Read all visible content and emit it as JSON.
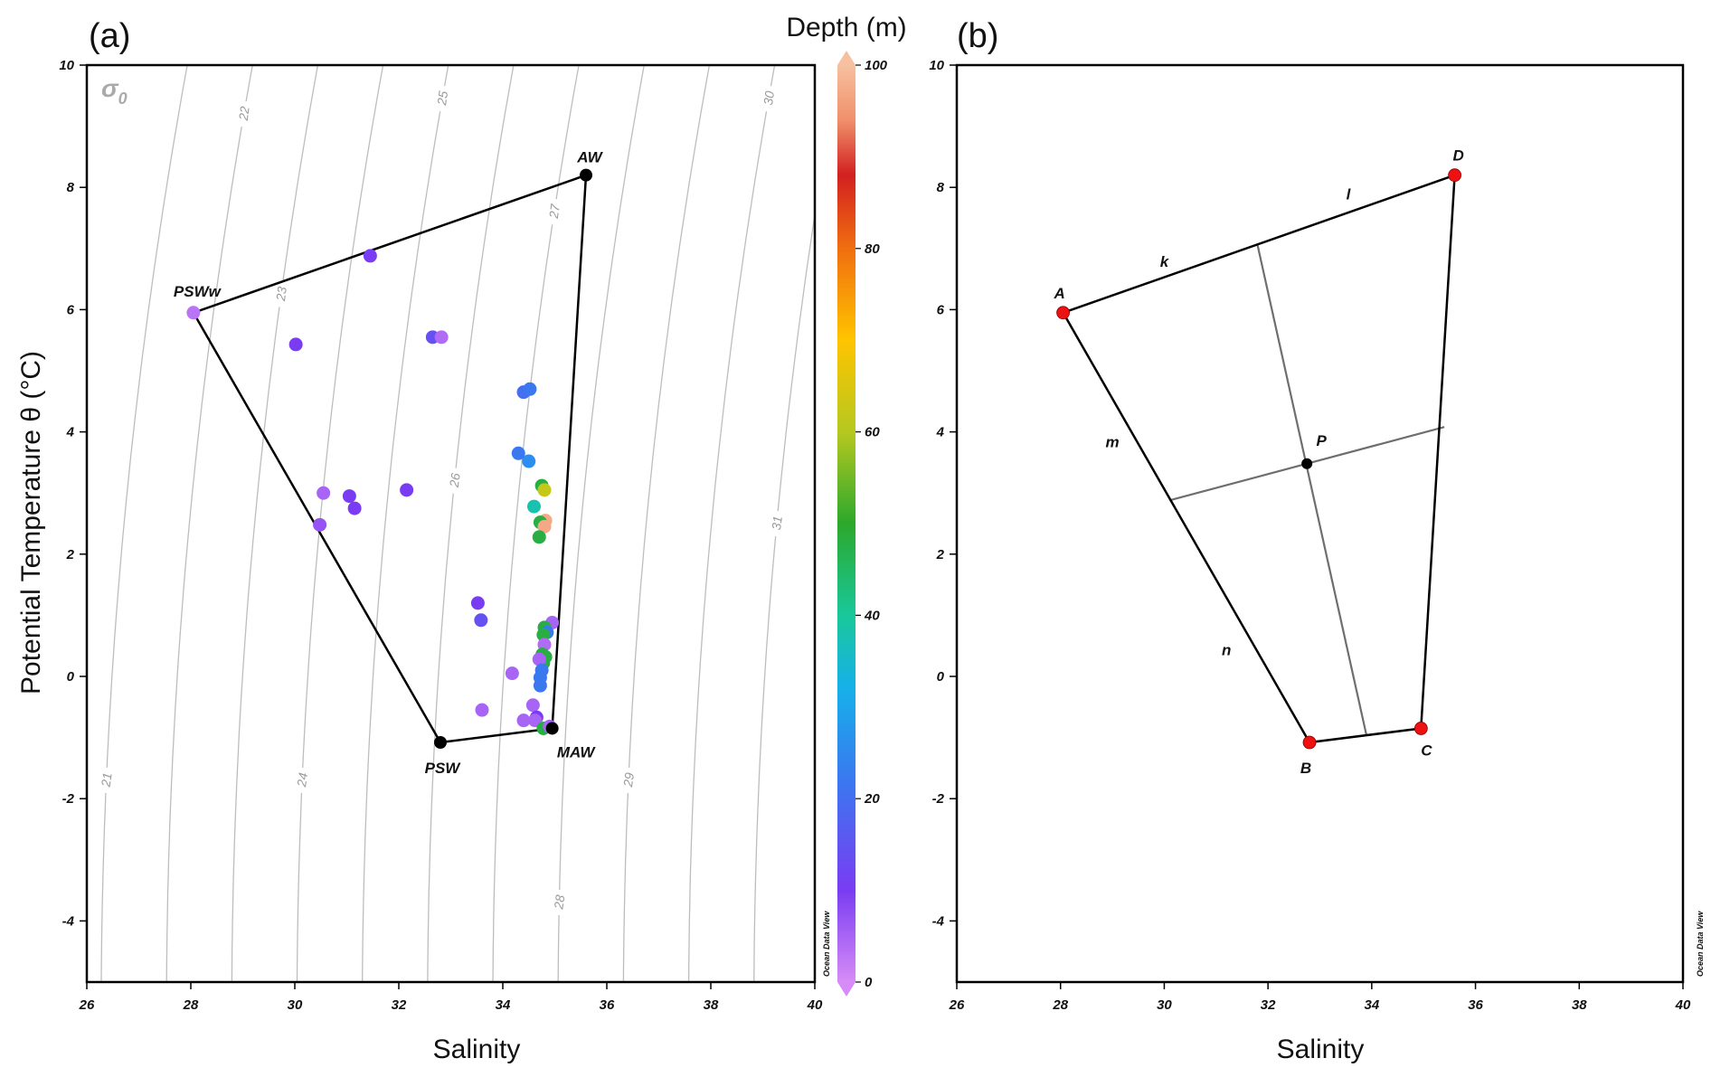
{
  "figure": {
    "panel_a_label": "(a)",
    "panel_b_label": "(b)",
    "colorbar_title": "Depth (m)",
    "watermark": "Ocean Data View",
    "sigma_label": "σ0"
  },
  "chart_data": [
    {
      "id": "a",
      "type": "scatter",
      "xlabel": "Salinity",
      "ylabel": "Potential Temperature θ (°C)",
      "xlim": [
        26,
        40
      ],
      "ylim": [
        -5,
        10
      ],
      "xticks": [
        26,
        28,
        30,
        32,
        34,
        36,
        38,
        40
      ],
      "yticks": [
        -4,
        -2,
        0,
        2,
        4,
        6,
        8,
        10
      ],
      "grid": false,
      "isopycnals": {
        "label": "σ0",
        "levels": [
          21,
          22,
          23,
          24,
          25,
          26,
          27,
          28,
          29,
          30,
          31
        ]
      },
      "polygon": {
        "vertices": [
          {
            "name": "AW",
            "s": 35.6,
            "t": 8.2
          },
          {
            "name": "PSWw",
            "s": 28.05,
            "t": 5.95
          },
          {
            "name": "PSW",
            "s": 32.8,
            "t": -1.08
          },
          {
            "name": "MAW",
            "s": 34.95,
            "t": -0.85
          }
        ]
      },
      "colorbar": {
        "title": "Depth (m)",
        "range": [
          0,
          100
        ],
        "ticks": [
          0,
          20,
          40,
          60,
          80,
          100
        ]
      },
      "points": [
        {
          "s": 28.05,
          "t": 5.95,
          "depth": 3
        },
        {
          "s": 31.45,
          "t": 6.88,
          "depth": 10
        },
        {
          "s": 30.02,
          "t": 5.43,
          "depth": 10
        },
        {
          "s": 32.65,
          "t": 5.55,
          "depth": 14
        },
        {
          "s": 32.82,
          "t": 5.55,
          "depth": 4
        },
        {
          "s": 34.4,
          "t": 4.65,
          "depth": 20
        },
        {
          "s": 34.52,
          "t": 4.7,
          "depth": 22
        },
        {
          "s": 34.3,
          "t": 3.65,
          "depth": 22
        },
        {
          "s": 34.5,
          "t": 3.52,
          "depth": 26
        },
        {
          "s": 34.75,
          "t": 3.12,
          "depth": 48
        },
        {
          "s": 34.8,
          "t": 3.05,
          "depth": 62
        },
        {
          "s": 34.6,
          "t": 2.78,
          "depth": 38
        },
        {
          "s": 34.82,
          "t": 2.55,
          "depth": 97
        },
        {
          "s": 34.72,
          "t": 2.52,
          "depth": 48
        },
        {
          "s": 34.8,
          "t": 2.45,
          "depth": 97
        },
        {
          "s": 34.7,
          "t": 2.28,
          "depth": 48
        },
        {
          "s": 32.15,
          "t": 3.05,
          "depth": 10
        },
        {
          "s": 31.05,
          "t": 2.95,
          "depth": 10
        },
        {
          "s": 30.55,
          "t": 3.0,
          "depth": 5
        },
        {
          "s": 31.15,
          "t": 2.75,
          "depth": 10
        },
        {
          "s": 30.48,
          "t": 2.48,
          "depth": 7
        },
        {
          "s": 33.52,
          "t": 1.2,
          "depth": 10
        },
        {
          "s": 33.58,
          "t": 0.92,
          "depth": 14
        },
        {
          "s": 34.95,
          "t": 0.88,
          "depth": 5
        },
        {
          "s": 34.8,
          "t": 0.8,
          "depth": 48
        },
        {
          "s": 34.85,
          "t": 0.72,
          "depth": 22
        },
        {
          "s": 34.78,
          "t": 0.68,
          "depth": 48
        },
        {
          "s": 34.8,
          "t": 0.52,
          "depth": 4
        },
        {
          "s": 34.76,
          "t": 0.36,
          "depth": 48
        },
        {
          "s": 34.82,
          "t": 0.32,
          "depth": 48
        },
        {
          "s": 34.78,
          "t": 0.22,
          "depth": 48
        },
        {
          "s": 34.7,
          "t": 0.28,
          "depth": 5
        },
        {
          "s": 34.75,
          "t": 0.1,
          "depth": 22
        },
        {
          "s": 34.72,
          "t": -0.02,
          "depth": 22
        },
        {
          "s": 34.72,
          "t": -0.15,
          "depth": 22
        },
        {
          "s": 34.18,
          "t": 0.05,
          "depth": 5
        },
        {
          "s": 33.6,
          "t": -0.55,
          "depth": 5
        },
        {
          "s": 34.58,
          "t": -0.47,
          "depth": 5
        },
        {
          "s": 34.4,
          "t": -0.72,
          "depth": 5
        },
        {
          "s": 34.65,
          "t": -0.67,
          "depth": 10
        },
        {
          "s": 34.62,
          "t": -0.72,
          "depth": 5
        },
        {
          "s": 34.78,
          "t": -0.85,
          "depth": 48
        },
        {
          "s": 34.9,
          "t": -0.82,
          "depth": 5
        }
      ]
    },
    {
      "id": "b",
      "type": "scatter",
      "xlabel": "Salinity",
      "ylabel": "",
      "xlim": [
        26,
        40
      ],
      "ylim": [
        -5,
        10
      ],
      "xticks": [
        26,
        28,
        30,
        32,
        34,
        36,
        38,
        40
      ],
      "yticks": [
        -4,
        -2,
        0,
        2,
        4,
        6,
        8,
        10
      ],
      "grid": false,
      "vertices": [
        {
          "name": "A",
          "s": 28.05,
          "t": 5.95
        },
        {
          "name": "D",
          "s": 35.6,
          "t": 8.2
        },
        {
          "name": "C",
          "s": 34.95,
          "t": -0.85
        },
        {
          "name": "B",
          "s": 32.8,
          "t": -1.08
        }
      ],
      "point": {
        "name": "P",
        "s": 32.75,
        "t": 3.48
      },
      "segment_labels": [
        {
          "text": "k",
          "s": 30.0,
          "t": 6.7
        },
        {
          "text": "l",
          "s": 33.55,
          "t": 7.8
        },
        {
          "text": "m",
          "s": 29.0,
          "t": 3.75
        },
        {
          "text": "n",
          "s": 31.2,
          "t": 0.35
        }
      ],
      "construction_lines": [
        {
          "s1": 31.8,
          "t1": 7.05,
          "s2": 33.9,
          "t2": -0.97
        },
        {
          "s1": 30.1,
          "t1": 2.88,
          "s2": 35.4,
          "t2": 4.08
        }
      ]
    }
  ]
}
